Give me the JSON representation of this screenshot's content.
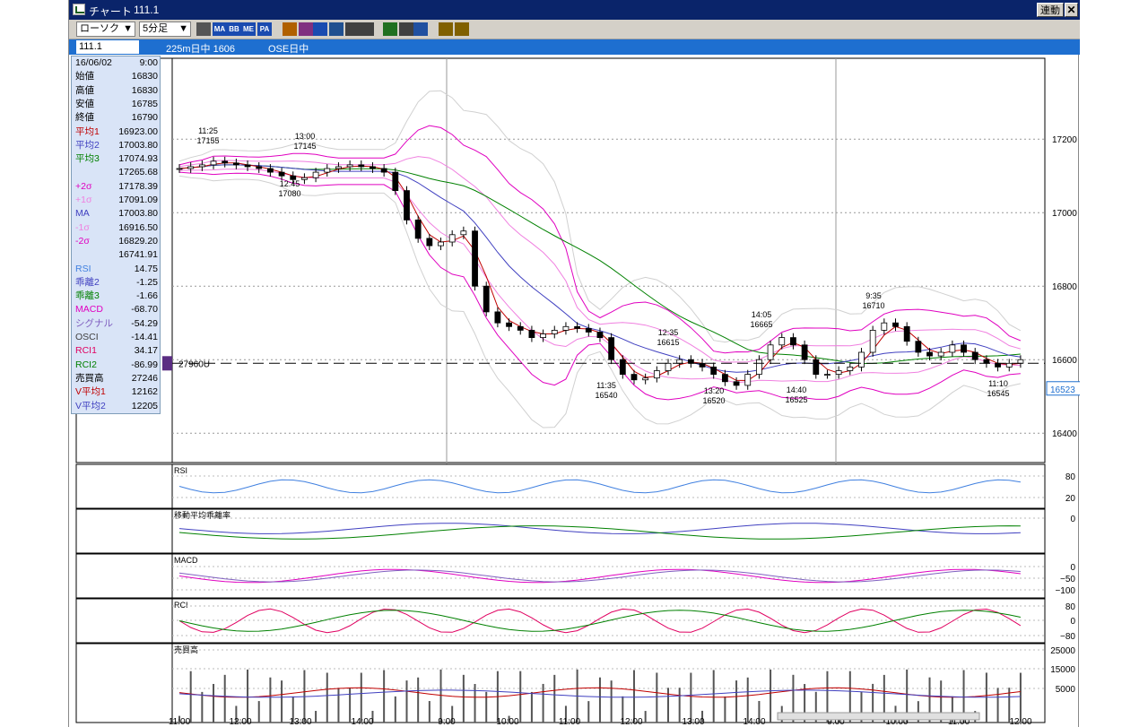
{
  "window": {
    "title": "チャート",
    "symbol": "111.1",
    "link_button": "連動",
    "close_label": "✕"
  },
  "toolbar": {
    "chart_type": "ローソク",
    "interval": "5分足",
    "buttons": [
      {
        "name": "table-icon",
        "label": ""
      },
      {
        "name": "ma-button",
        "label": "MA"
      },
      {
        "name": "bb-button",
        "label": "BB"
      },
      {
        "name": "me-button",
        "label": "ME"
      },
      {
        "name": "pa-button",
        "label": "PA"
      },
      {
        "name": "line-chart-icon",
        "label": ""
      },
      {
        "name": "rise-fall-icon",
        "label": ""
      },
      {
        "name": "crosshair-icon",
        "label": ""
      },
      {
        "name": "zoom-icon",
        "label": ""
      },
      {
        "name": "print-chart-icon",
        "label": ""
      },
      {
        "name": "split-icon",
        "label": ""
      },
      {
        "name": "pen-icon",
        "label": ""
      },
      {
        "name": "cursor-icon",
        "label": ""
      },
      {
        "name": "eraser-icon",
        "label": ""
      },
      {
        "name": "search-icon",
        "label": ""
      },
      {
        "name": "fibonacci-icon",
        "label": ""
      }
    ]
  },
  "infobar": {
    "symbol_field": "111.1",
    "market1": "225m日中 1606",
    "market2": "OSE日中"
  },
  "datapanel": {
    "rows": [
      {
        "label": "16/06/02",
        "value": "9:00",
        "color": "#000000"
      },
      {
        "label": "始値",
        "value": "16830",
        "color": "#000000"
      },
      {
        "label": "高値",
        "value": "16830",
        "color": "#000000"
      },
      {
        "label": "安値",
        "value": "16785",
        "color": "#000000"
      },
      {
        "label": "終値",
        "value": "16790",
        "color": "#000000"
      },
      {
        "label": "平均1",
        "value": "16923.00",
        "color": "#c00000"
      },
      {
        "label": "平均2",
        "value": "17003.80",
        "color": "#4040c0"
      },
      {
        "label": "平均3",
        "value": "17074.93",
        "color": "#008000"
      },
      {
        "label": "",
        "value": "17265.68",
        "color": "#000000"
      },
      {
        "label": "+2σ",
        "value": "17178.39",
        "color": "#e000c0"
      },
      {
        "label": "+1σ",
        "value": "17091.09",
        "color": "#f080e0"
      },
      {
        "label": "MA",
        "value": "17003.80",
        "color": "#4040c0"
      },
      {
        "label": "-1σ",
        "value": "16916.50",
        "color": "#f080e0"
      },
      {
        "label": "-2σ",
        "value": "16829.20",
        "color": "#e000c0"
      },
      {
        "label": "",
        "value": "16741.91",
        "color": "#000000"
      },
      {
        "label": "RSI",
        "value": "14.75",
        "color": "#4080e0"
      },
      {
        "label": "乖離2",
        "value": "-1.25",
        "color": "#4040c0"
      },
      {
        "label": "乖離3",
        "value": "-1.66",
        "color": "#008000"
      },
      {
        "label": "MACD",
        "value": "-68.70",
        "color": "#e000c0"
      },
      {
        "label": "シグナル",
        "value": "-54.29",
        "color": "#8060c0"
      },
      {
        "label": "OSCI",
        "value": "-14.41",
        "color": "#404040"
      },
      {
        "label": "RCI1",
        "value": "34.17",
        "color": "#e00060"
      },
      {
        "label": "RCI2",
        "value": "-86.99",
        "color": "#008000"
      },
      {
        "label": "売買高",
        "value": "27246",
        "color": "#000000"
      },
      {
        "label": "V平均1",
        "value": "12162",
        "color": "#c00000"
      },
      {
        "label": "V平均2",
        "value": "12205",
        "color": "#4040c0"
      }
    ]
  },
  "chart_data": {
    "type": "candlestick",
    "price_axis": {
      "ticks": [
        "17200",
        "17000",
        "16800",
        "16600",
        "16400"
      ],
      "tick_values": [
        17200,
        17000,
        16800,
        16600,
        16400
      ],
      "range": [
        16320,
        17420
      ]
    },
    "current_price": "16523",
    "reference_line_label": "27960U",
    "time_labels": [
      "11:00",
      "12:00",
      "13:00",
      "14:00",
      "9:00",
      "10:00",
      "11:00",
      "12:00",
      "13:00",
      "14:00",
      "9:00",
      "10:00",
      "11:00",
      "12:00"
    ],
    "price_close": [
      17120,
      17125,
      17130,
      17140,
      17135,
      17130,
      17125,
      17120,
      17110,
      17100,
      17090,
      17095,
      17110,
      17120,
      17125,
      17130,
      17125,
      17120,
      17110,
      17060,
      16980,
      16930,
      16910,
      16920,
      16940,
      16950,
      16800,
      16730,
      16700,
      16690,
      16680,
      16660,
      16670,
      16680,
      16690,
      16685,
      16675,
      16660,
      16600,
      16560,
      16545,
      16550,
      16570,
      16590,
      16600,
      16590,
      16580,
      16560,
      16540,
      16530,
      16560,
      16600,
      16640,
      16660,
      16640,
      16600,
      16560,
      16560,
      16570,
      16580,
      16620,
      16680,
      16700,
      16690,
      16650,
      16620,
      16610,
      16620,
      16640,
      16620,
      16600,
      16590,
      16580,
      16590,
      16600
    ],
    "price_annotations": [
      {
        "time": "11:25",
        "price": "17155"
      },
      {
        "time": "13:00",
        "price": "17145"
      },
      {
        "time": "12:45",
        "price": "17080"
      },
      {
        "time": "12:35",
        "price": "16615"
      },
      {
        "time": "14:05",
        "price": "16665"
      },
      {
        "time": "9:35",
        "price": "16710"
      },
      {
        "time": "11:35",
        "price": "16540"
      },
      {
        "time": "13:20",
        "price": "16520"
      },
      {
        "time": "14:40",
        "price": "16525"
      },
      {
        "time": "11:10",
        "price": "16545"
      }
    ],
    "panels": [
      {
        "name": "RSI",
        "ticks": [
          "80",
          "20"
        ]
      },
      {
        "name": "移動平均乖離率",
        "ticks": [
          "0"
        ]
      },
      {
        "name": "MACD",
        "ticks": [
          "0",
          "−50",
          "−100"
        ]
      },
      {
        "name": "RCI",
        "ticks": [
          "80",
          "0",
          "−80"
        ]
      },
      {
        "name": "売買高",
        "ticks": [
          "25000",
          "15000",
          "5000"
        ]
      }
    ]
  }
}
